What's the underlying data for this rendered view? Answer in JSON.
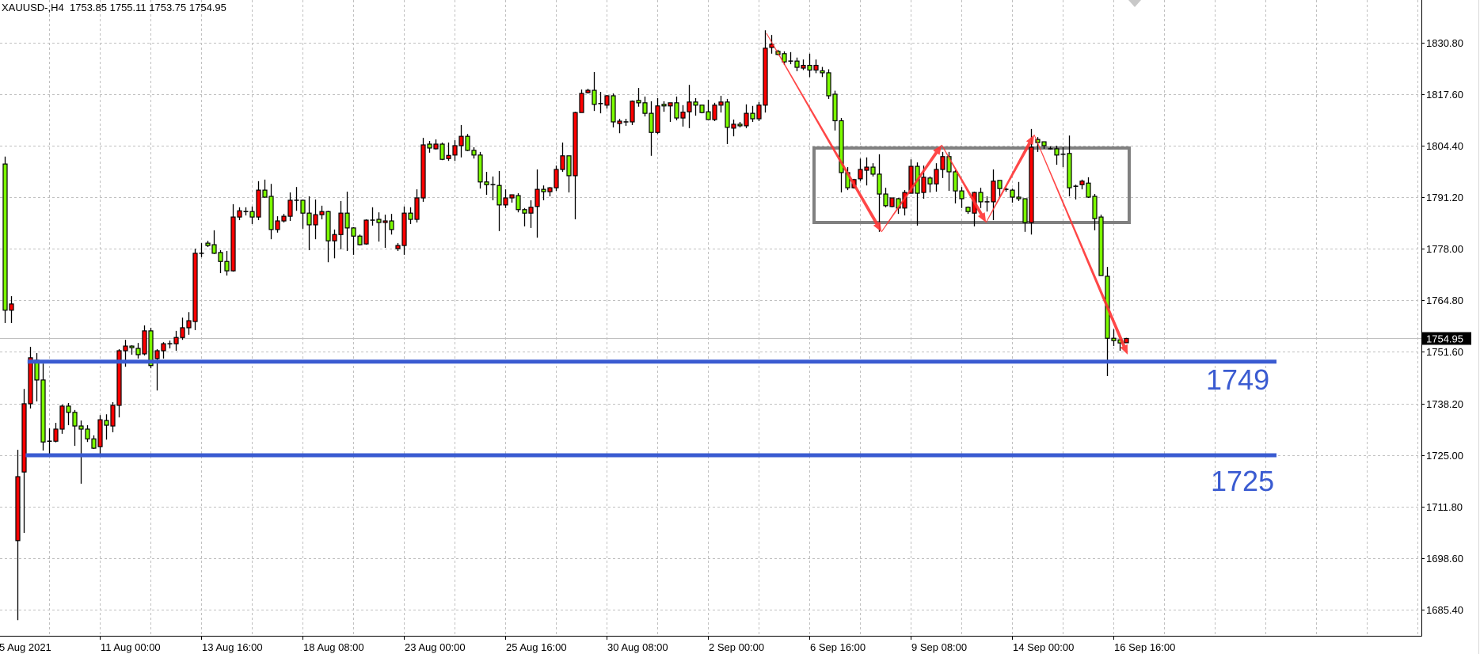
{
  "header": {
    "symbol": "XAUUSD-,H4",
    "open": "1753.85",
    "high": "1755.11",
    "low": "1753.75",
    "close": "1754.95"
  },
  "colors": {
    "bull_body": "#ff0000",
    "bear_body": "#7cfc00",
    "outline": "#000000",
    "grid": "#c0c0c0",
    "level_line": "#3a5bd1",
    "range_box": "#808080",
    "arrow": "#ff3333",
    "current_price_bg": "#000000"
  },
  "chart_data": {
    "type": "candlestick",
    "symbol": "XAUUSD-",
    "timeframe": "H4",
    "ylim": [
      1678.7,
      1841.8
    ],
    "grid": true,
    "y_ticks": [
      "1830.80",
      "1817.60",
      "1804.40",
      "1791.20",
      "1778.00",
      "1764.80",
      "1751.60",
      "1738.20",
      "1725.00",
      "1711.80",
      "1698.60",
      "1685.40"
    ],
    "x_ticks": [
      {
        "label": "5 Aug 2021",
        "bar": -1
      },
      {
        "label": "11 Aug 00:00",
        "bar": 15
      },
      {
        "label": "13 Aug 16:00",
        "bar": 31
      },
      {
        "label": "18 Aug 08:00",
        "bar": 47
      },
      {
        "label": "23 Aug 00:00",
        "bar": 63
      },
      {
        "label": "25 Aug 16:00",
        "bar": 79
      },
      {
        "label": "30 Aug 08:00",
        "bar": 95
      },
      {
        "label": "2 Sep 00:00",
        "bar": 111
      },
      {
        "label": "6 Sep 16:00",
        "bar": 127
      },
      {
        "label": "9 Sep 08:00",
        "bar": 143
      },
      {
        "label": "14 Sep 00:00",
        "bar": 159
      },
      {
        "label": "16 Sep 16:00",
        "bar": 175
      }
    ],
    "current_price": "1754.95",
    "ohlc_fields": [
      "open",
      "high",
      "low",
      "close"
    ],
    "ohlc": [
      [
        1799.7,
        1801.6,
        1758.9,
        1762.2
      ],
      [
        1762.2,
        1765.8,
        1758.9,
        1763.8
      ],
      [
        1703.1,
        1726.4,
        1682.7,
        1719.5
      ],
      [
        1720.7,
        1742.0,
        1705.1,
        1738.2
      ],
      [
        1738.2,
        1752.8,
        1737.0,
        1750.0
      ],
      [
        1749.4,
        1751.2,
        1738.8,
        1744.3
      ],
      [
        1744.3,
        1748.5,
        1726.2,
        1728.4
      ],
      [
        1728.6,
        1731.9,
        1724.8,
        1728.6
      ],
      [
        1728.6,
        1733.3,
        1728.3,
        1731.7
      ],
      [
        1731.7,
        1738.0,
        1730.5,
        1737.6
      ],
      [
        1737.6,
        1738.4,
        1732.7,
        1736.0
      ],
      [
        1736.0,
        1736.6,
        1727.4,
        1732.5
      ],
      [
        1732.5,
        1733.9,
        1717.7,
        1731.7
      ],
      [
        1731.7,
        1732.7,
        1728.4,
        1729.2
      ],
      [
        1729.2,
        1730.1,
        1726.6,
        1726.8
      ],
      [
        1727.2,
        1735.3,
        1725.0,
        1734.1
      ],
      [
        1733.9,
        1735.5,
        1729.0,
        1732.7
      ],
      [
        1732.5,
        1738.6,
        1730.9,
        1737.8
      ],
      [
        1737.8,
        1752.2,
        1734.7,
        1751.8
      ],
      [
        1751.8,
        1754.6,
        1747.7,
        1753.0
      ],
      [
        1753.0,
        1753.2,
        1750.8,
        1752.6
      ],
      [
        1752.4,
        1753.8,
        1749.8,
        1750.8
      ],
      [
        1751.0,
        1758.3,
        1750.6,
        1756.9
      ],
      [
        1756.9,
        1757.7,
        1747.3,
        1748.0
      ],
      [
        1749.8,
        1752.2,
        1741.6,
        1751.8
      ],
      [
        1751.8,
        1754.0,
        1749.8,
        1753.6
      ],
      [
        1753.6,
        1754.4,
        1752.4,
        1753.6
      ],
      [
        1753.6,
        1756.9,
        1751.8,
        1755.2
      ],
      [
        1755.2,
        1760.3,
        1754.6,
        1757.7
      ],
      [
        1757.7,
        1761.7,
        1755.9,
        1759.5
      ],
      [
        1759.3,
        1778.0,
        1757.1,
        1776.8
      ],
      [
        1776.8,
        1779.4,
        1775.8,
        1776.8
      ],
      [
        1779.4,
        1780.0,
        1778.4,
        1778.8
      ],
      [
        1779.0,
        1782.7,
        1776.6,
        1776.8
      ],
      [
        1777.0,
        1777.6,
        1771.7,
        1774.7
      ],
      [
        1774.7,
        1777.4,
        1771.1,
        1772.3
      ],
      [
        1772.3,
        1789.4,
        1772.1,
        1786.1
      ],
      [
        1786.1,
        1788.6,
        1785.3,
        1787.7
      ],
      [
        1787.5,
        1788.6,
        1786.5,
        1787.5
      ],
      [
        1787.5,
        1788.8,
        1784.3,
        1786.1
      ],
      [
        1786.1,
        1795.3,
        1785.3,
        1793.0
      ],
      [
        1793.0,
        1795.7,
        1791.0,
        1791.2
      ],
      [
        1791.4,
        1794.6,
        1780.4,
        1782.9
      ],
      [
        1782.9,
        1786.3,
        1782.1,
        1785.1
      ],
      [
        1785.1,
        1786.9,
        1784.7,
        1786.3
      ],
      [
        1786.3,
        1792.4,
        1785.1,
        1790.4
      ],
      [
        1790.4,
        1793.8,
        1787.7,
        1790.4
      ],
      [
        1790.4,
        1790.6,
        1783.1,
        1787.1
      ],
      [
        1787.1,
        1791.4,
        1777.6,
        1784.1
      ],
      [
        1784.1,
        1790.6,
        1780.4,
        1786.7
      ],
      [
        1786.7,
        1789.0,
        1785.5,
        1787.5
      ],
      [
        1787.5,
        1787.7,
        1774.5,
        1780.0
      ],
      [
        1780.0,
        1782.9,
        1775.5,
        1781.6
      ],
      [
        1781.6,
        1790.2,
        1777.8,
        1787.1
      ],
      [
        1787.1,
        1792.6,
        1777.4,
        1783.3
      ],
      [
        1783.3,
        1783.5,
        1776.4,
        1781.2
      ],
      [
        1781.2,
        1781.6,
        1778.8,
        1779.0
      ],
      [
        1779.2,
        1785.5,
        1779.0,
        1785.3
      ],
      [
        1785.3,
        1788.6,
        1783.9,
        1785.3
      ],
      [
        1785.5,
        1787.3,
        1779.8,
        1784.7
      ],
      [
        1784.7,
        1786.7,
        1778.2,
        1785.1
      ],
      [
        1785.1,
        1786.9,
        1781.6,
        1782.9
      ],
      [
        1778.0,
        1779.4,
        1777.4,
        1778.8
      ],
      [
        1778.8,
        1788.8,
        1776.4,
        1787.1
      ],
      [
        1787.1,
        1788.6,
        1784.3,
        1785.5
      ],
      [
        1785.5,
        1793.2,
        1784.7,
        1791.0
      ],
      [
        1791.0,
        1806.4,
        1790.0,
        1804.6
      ],
      [
        1804.8,
        1805.6,
        1802.6,
        1803.8
      ],
      [
        1803.6,
        1806.0,
        1803.4,
        1804.8
      ],
      [
        1804.8,
        1805.2,
        1800.7,
        1800.9
      ],
      [
        1801.1,
        1805.2,
        1800.5,
        1801.9
      ],
      [
        1802.0,
        1805.8,
        1800.5,
        1804.4
      ],
      [
        1804.4,
        1809.7,
        1801.4,
        1806.8
      ],
      [
        1806.8,
        1807.4,
        1803.0,
        1803.2
      ],
      [
        1803.2,
        1804.0,
        1801.1,
        1802.0
      ],
      [
        1802.0,
        1802.8,
        1793.4,
        1795.1
      ],
      [
        1795.1,
        1797.7,
        1791.8,
        1794.4
      ],
      [
        1794.4,
        1796.5,
        1790.4,
        1794.4
      ],
      [
        1794.2,
        1797.9,
        1782.5,
        1789.2
      ],
      [
        1789.2,
        1793.2,
        1788.4,
        1791.0
      ],
      [
        1791.0,
        1791.8,
        1789.8,
        1791.8
      ],
      [
        1791.6,
        1792.2,
        1787.3,
        1788.0
      ],
      [
        1788.0,
        1788.4,
        1783.7,
        1787.1
      ],
      [
        1787.1,
        1790.4,
        1783.3,
        1788.6
      ],
      [
        1788.8,
        1798.3,
        1780.8,
        1793.2
      ],
      [
        1793.2,
        1794.2,
        1790.4,
        1792.6
      ],
      [
        1792.6,
        1793.8,
        1791.4,
        1793.6
      ],
      [
        1793.6,
        1799.3,
        1792.8,
        1798.3
      ],
      [
        1798.3,
        1805.2,
        1797.7,
        1801.8
      ],
      [
        1801.8,
        1801.8,
        1792.4,
        1796.7
      ],
      [
        1796.7,
        1813.1,
        1785.5,
        1812.9
      ],
      [
        1812.9,
        1818.8,
        1812.9,
        1817.8
      ],
      [
        1818.0,
        1819.0,
        1817.8,
        1818.6
      ],
      [
        1818.6,
        1823.3,
        1813.3,
        1815.0
      ],
      [
        1815.2,
        1818.2,
        1812.7,
        1815.2
      ],
      [
        1814.8,
        1817.4,
        1813.9,
        1817.2
      ],
      [
        1817.2,
        1817.8,
        1809.1,
        1810.5
      ],
      [
        1810.1,
        1811.3,
        1807.6,
        1810.7
      ],
      [
        1810.5,
        1811.3,
        1809.5,
        1810.5
      ],
      [
        1810.5,
        1816.0,
        1809.7,
        1815.8
      ],
      [
        1816.0,
        1819.2,
        1814.4,
        1815.4
      ],
      [
        1815.4,
        1817.0,
        1811.9,
        1812.7
      ],
      [
        1812.7,
        1815.8,
        1801.8,
        1807.8
      ],
      [
        1807.8,
        1816.6,
        1807.4,
        1814.6
      ],
      [
        1815.0,
        1815.8,
        1813.1,
        1814.6
      ],
      [
        1814.6,
        1815.4,
        1810.5,
        1815.4
      ],
      [
        1815.4,
        1817.0,
        1810.9,
        1811.5
      ],
      [
        1811.5,
        1814.8,
        1809.3,
        1813.0
      ],
      [
        1813.1,
        1820.0,
        1808.9,
        1815.6
      ],
      [
        1815.6,
        1816.6,
        1812.1,
        1814.8
      ],
      [
        1814.8,
        1814.8,
        1812.7,
        1812.9
      ],
      [
        1813.1,
        1816.2,
        1811.1,
        1811.1
      ],
      [
        1811.1,
        1815.4,
        1810.7,
        1814.8
      ],
      [
        1814.8,
        1817.2,
        1812.9,
        1815.6
      ],
      [
        1815.6,
        1816.4,
        1804.8,
        1809.1
      ],
      [
        1808.9,
        1811.1,
        1806.8,
        1809.9
      ],
      [
        1809.9,
        1810.5,
        1809.1,
        1809.5
      ],
      [
        1809.5,
        1815.0,
        1808.9,
        1812.7
      ],
      [
        1812.7,
        1814.6,
        1810.5,
        1811.3
      ],
      [
        1811.3,
        1815.6,
        1810.7,
        1814.8
      ],
      [
        1814.8,
        1834.0,
        1812.9,
        1829.4
      ],
      [
        1829.6,
        1832.8,
        1828.0,
        1830.4
      ],
      [
        1828.6,
        1829.0,
        1827.6,
        1827.8
      ],
      [
        1828.0,
        1828.6,
        1825.1,
        1825.9
      ],
      [
        1826.1,
        1828.4,
        1825.3,
        1826.1
      ],
      [
        1826.1,
        1827.0,
        1823.5,
        1824.5
      ],
      [
        1824.3,
        1826.5,
        1823.8,
        1825.0
      ],
      [
        1825.0,
        1828.0,
        1822.0,
        1823.8
      ],
      [
        1823.8,
        1826.5,
        1823.0,
        1825.0
      ],
      [
        1823.6,
        1824.6,
        1822.0,
        1823.1
      ],
      [
        1823.1,
        1824.0,
        1816.4,
        1817.2
      ],
      [
        1817.6,
        1818.5,
        1808.3,
        1810.8
      ],
      [
        1810.8,
        1811.5,
        1792.4,
        1797.5
      ],
      [
        1797.5,
        1798.9,
        1793.0,
        1793.6
      ],
      [
        1793.6,
        1795.9,
        1793.4,
        1795.7
      ],
      [
        1795.9,
        1801.1,
        1795.3,
        1798.3
      ],
      [
        1798.1,
        1801.4,
        1794.2,
        1798.9
      ],
      [
        1798.9,
        1799.9,
        1796.5,
        1797.1
      ],
      [
        1797.1,
        1802.2,
        1782.3,
        1792.0
      ],
      [
        1792.0,
        1793.6,
        1788.6,
        1789.0
      ],
      [
        1788.8,
        1791.0,
        1788.6,
        1791.0
      ],
      [
        1790.8,
        1791.0,
        1786.9,
        1788.4
      ],
      [
        1788.4,
        1793.0,
        1786.5,
        1792.4
      ],
      [
        1792.2,
        1800.9,
        1792.2,
        1799.1
      ],
      [
        1799.1,
        1800.1,
        1783.9,
        1792.2
      ],
      [
        1792.4,
        1799.3,
        1790.8,
        1796.3
      ],
      [
        1796.1,
        1796.5,
        1792.4,
        1794.6
      ],
      [
        1794.6,
        1799.9,
        1792.6,
        1798.3
      ],
      [
        1798.3,
        1802.8,
        1796.1,
        1801.6
      ],
      [
        1801.6,
        1802.8,
        1792.8,
        1797.7
      ],
      [
        1797.7,
        1798.1,
        1789.6,
        1792.8
      ],
      [
        1792.8,
        1793.8,
        1788.4,
        1790.8
      ],
      [
        1788.6,
        1788.8,
        1786.9,
        1787.5
      ],
      [
        1787.1,
        1792.6,
        1783.7,
        1792.4
      ],
      [
        1792.4,
        1793.6,
        1788.4,
        1790.0
      ],
      [
        1790.0,
        1791.4,
        1787.5,
        1790.0
      ],
      [
        1790.0,
        1798.3,
        1785.3,
        1795.3
      ],
      [
        1795.5,
        1795.5,
        1791.2,
        1793.4
      ],
      [
        1793.2,
        1793.6,
        1792.6,
        1793.2
      ],
      [
        1793.0,
        1793.4,
        1789.8,
        1791.2
      ],
      [
        1791.2,
        1795.1,
        1790.2,
        1790.8
      ],
      [
        1790.8,
        1790.8,
        1782.3,
        1784.7
      ],
      [
        1784.7,
        1808.7,
        1781.6,
        1804.0
      ],
      [
        1806.0,
        1806.6,
        1802.8,
        1805.2
      ],
      [
        1805.4,
        1805.4,
        1803.6,
        1804.4
      ],
      [
        1803.6,
        1804.2,
        1803.4,
        1803.6
      ],
      [
        1803.6,
        1804.4,
        1799.5,
        1802.0
      ],
      [
        1802.2,
        1804.0,
        1798.9,
        1802.2
      ],
      [
        1802.4,
        1807.0,
        1791.4,
        1793.6
      ],
      [
        1794.0,
        1794.4,
        1790.6,
        1794.0
      ],
      [
        1794.4,
        1795.7,
        1793.2,
        1795.3
      ],
      [
        1794.8,
        1796.3,
        1791.0,
        1791.2
      ],
      [
        1791.4,
        1792.0,
        1782.7,
        1785.7
      ],
      [
        1786.1,
        1786.7,
        1771.1,
        1771.1
      ],
      [
        1770.9,
        1773.3,
        1745.3,
        1755.0
      ],
      [
        1755.0,
        1757.3,
        1753.0,
        1754.4
      ],
      [
        1754.6,
        1754.6,
        1751.8,
        1753.8
      ],
      [
        1753.85,
        1755.11,
        1753.75,
        1754.95
      ]
    ],
    "annotations": {
      "levels": [
        {
          "price": 1749,
          "label": "1749",
          "from_bar": 3.6
        },
        {
          "price": 1725,
          "label": "1725",
          "from_bar": 3.3
        }
      ],
      "range_box": {
        "top": 1803.8,
        "bottom": 1784.7,
        "from_bar": 127.75,
        "to_bar": 177.5
      },
      "arrows": [
        {
          "from": [
            120.25,
            1833.2
          ],
          "to": [
            138.4,
            1782.3
          ]
        },
        {
          "from": [
            138.4,
            1782.3
          ],
          "to": [
            147.9,
            1804.6
          ]
        },
        {
          "from": [
            147.9,
            1804.6
          ],
          "to": [
            154.9,
            1784.7
          ]
        },
        {
          "from": [
            154.9,
            1784.7
          ],
          "to": [
            162.5,
            1807.2
          ]
        },
        {
          "from": [
            162.5,
            1807.2
          ],
          "to": [
            177.25,
            1750.8
          ]
        }
      ]
    }
  }
}
